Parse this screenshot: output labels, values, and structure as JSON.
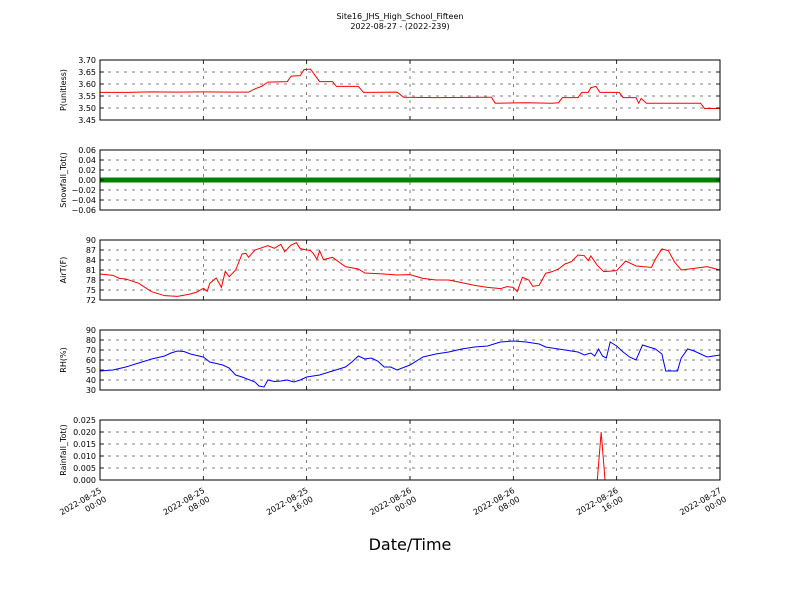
{
  "figure": {
    "title_line1": "Site16_JHS_High_School_Fifteen",
    "title_line2": "2022-08-27 - (2022-239)",
    "xlabel": "Date/Time"
  },
  "chart_data": {
    "type": "line",
    "x_range_hours": [
      0,
      48
    ],
    "x_ticks": [
      {
        "hour": 0,
        "label_top": "2022-08-25",
        "label_bottom": "00:00"
      },
      {
        "hour": 8,
        "label_top": "2022-08-25",
        "label_bottom": "08:00"
      },
      {
        "hour": 16,
        "label_top": "2022-08-25",
        "label_bottom": "16:00"
      },
      {
        "hour": 24,
        "label_top": "2022-08-26",
        "label_bottom": "00:00"
      },
      {
        "hour": 32,
        "label_top": "2022-08-26",
        "label_bottom": "08:00"
      },
      {
        "hour": 40,
        "label_top": "2022-08-26",
        "label_bottom": "16:00"
      },
      {
        "hour": 48,
        "label_top": "2022-08-27",
        "label_bottom": "00:00"
      }
    ],
    "grid": true,
    "panels": [
      {
        "ylabel": "P(unitless)",
        "ylim": [
          3.45,
          3.7
        ],
        "yticks": [
          "3.45",
          "3.50",
          "3.55",
          "3.60",
          "3.65",
          "3.70"
        ],
        "color": "#ff0000",
        "points": [
          [
            0,
            3.565
          ],
          [
            2,
            3.565
          ],
          [
            4,
            3.567
          ],
          [
            6,
            3.566
          ],
          [
            8,
            3.567
          ],
          [
            10,
            3.566
          ],
          [
            11.5,
            3.566
          ],
          [
            12,
            3.58
          ],
          [
            12.5,
            3.59
          ],
          [
            13,
            3.608
          ],
          [
            14.5,
            3.61
          ],
          [
            14.8,
            3.633
          ],
          [
            15.5,
            3.635
          ],
          [
            15.8,
            3.66
          ],
          [
            16.3,
            3.662
          ],
          [
            16.6,
            3.64
          ],
          [
            17,
            3.61
          ],
          [
            18,
            3.61
          ],
          [
            18.3,
            3.59
          ],
          [
            20,
            3.59
          ],
          [
            20.4,
            3.565
          ],
          [
            23,
            3.566
          ],
          [
            23.5,
            3.545
          ],
          [
            26,
            3.543
          ],
          [
            30,
            3.545
          ],
          [
            30.3,
            3.545
          ],
          [
            30.6,
            3.52
          ],
          [
            33,
            3.522
          ],
          [
            35,
            3.52
          ],
          [
            35.5,
            3.522
          ],
          [
            35.8,
            3.543
          ],
          [
            37,
            3.543
          ],
          [
            37.3,
            3.565
          ],
          [
            37.8,
            3.565
          ],
          [
            38,
            3.585
          ],
          [
            38.4,
            3.59
          ],
          [
            38.7,
            3.565
          ],
          [
            40.2,
            3.565
          ],
          [
            40.5,
            3.543
          ],
          [
            41.5,
            3.543
          ],
          [
            41.7,
            3.52
          ],
          [
            41.9,
            3.54
          ],
          [
            42.3,
            3.52
          ],
          [
            46,
            3.52
          ],
          [
            46.5,
            3.52
          ],
          [
            46.8,
            3.498
          ],
          [
            48,
            3.498
          ]
        ]
      },
      {
        "ylabel": "Snowfall_Tot()",
        "ylim": [
          -0.06,
          0.06
        ],
        "yticks": [
          "−0.06",
          "−0.04",
          "−0.02",
          "0.00",
          "0.02",
          "0.04",
          "0.06"
        ],
        "color": "#008000",
        "markers": true,
        "points": [
          [
            0,
            0
          ],
          [
            48,
            0
          ]
        ]
      },
      {
        "ylabel": "AirT(F)",
        "ylim": [
          72,
          90
        ],
        "yticks": [
          "72",
          "75",
          "78",
          "81",
          "84",
          "87",
          "90"
        ],
        "color": "#ff0000",
        "points": [
          [
            0,
            79.8
          ],
          [
            1,
            79.4
          ],
          [
            1.5,
            78.5
          ],
          [
            2,
            78.3
          ],
          [
            3,
            77
          ],
          [
            4,
            74.5
          ],
          [
            5,
            73.3
          ],
          [
            6,
            73.1
          ],
          [
            7,
            73.8
          ],
          [
            7.5,
            74.4
          ],
          [
            8,
            75.5
          ],
          [
            8.3,
            74.6
          ],
          [
            8.5,
            77
          ],
          [
            9,
            78.6
          ],
          [
            9.4,
            75.8
          ],
          [
            9.7,
            80.6
          ],
          [
            10,
            79
          ],
          [
            10.5,
            81
          ],
          [
            11,
            85.8
          ],
          [
            11.3,
            86
          ],
          [
            11.5,
            84.8
          ],
          [
            12,
            87
          ],
          [
            13,
            88.3
          ],
          [
            13.5,
            87.5
          ],
          [
            14,
            88.7
          ],
          [
            14.3,
            86.5
          ],
          [
            14.8,
            88.5
          ],
          [
            15.2,
            89.2
          ],
          [
            15.5,
            87.4
          ],
          [
            16.3,
            86.8
          ],
          [
            16.5,
            86
          ],
          [
            16.8,
            84.2
          ],
          [
            17,
            86.8
          ],
          [
            17.3,
            84.1
          ],
          [
            18,
            84.8
          ],
          [
            19,
            82
          ],
          [
            20,
            81.3
          ],
          [
            20.5,
            80.1
          ],
          [
            22,
            79.8
          ],
          [
            23,
            79.5
          ],
          [
            24,
            79.6
          ],
          [
            25,
            78.5
          ],
          [
            26,
            78
          ],
          [
            27,
            78
          ],
          [
            28,
            77.2
          ],
          [
            29,
            76.4
          ],
          [
            30,
            75.8
          ],
          [
            31,
            75.4
          ],
          [
            31.5,
            76
          ],
          [
            32,
            75.8
          ],
          [
            32.3,
            74.5
          ],
          [
            32.7,
            78.8
          ],
          [
            33.2,
            78
          ],
          [
            33.5,
            76.1
          ],
          [
            34,
            76.4
          ],
          [
            34.5,
            80
          ],
          [
            35,
            80.5
          ],
          [
            35.5,
            81.3
          ],
          [
            36,
            82.8
          ],
          [
            36.5,
            83.5
          ],
          [
            37,
            85.5
          ],
          [
            37.5,
            85.3
          ],
          [
            37.8,
            83.8
          ],
          [
            38,
            85.2
          ],
          [
            38.5,
            82.4
          ],
          [
            39,
            80.5
          ],
          [
            40,
            80.8
          ],
          [
            40.7,
            83.7
          ],
          [
            41.5,
            82.2
          ],
          [
            42,
            82
          ],
          [
            42.7,
            81.8
          ],
          [
            43,
            84.3
          ],
          [
            43.5,
            87.3
          ],
          [
            44,
            86.8
          ],
          [
            44.5,
            83.3
          ],
          [
            45,
            81
          ],
          [
            46,
            81.5
          ],
          [
            47,
            82
          ],
          [
            48,
            81
          ]
        ]
      },
      {
        "ylabel": "RH(%)",
        "ylim": [
          30,
          90
        ],
        "yticks": [
          "30",
          "40",
          "50",
          "60",
          "70",
          "80",
          "90"
        ],
        "color": "#0000ff",
        "points": [
          [
            0,
            49
          ],
          [
            1,
            50
          ],
          [
            2,
            53
          ],
          [
            3,
            57
          ],
          [
            4,
            61
          ],
          [
            5,
            64
          ],
          [
            5.5,
            67
          ],
          [
            6,
            69
          ],
          [
            6.5,
            68.5
          ],
          [
            7,
            66
          ],
          [
            8,
            63
          ],
          [
            8.5,
            58
          ],
          [
            9.5,
            55
          ],
          [
            10,
            52
          ],
          [
            10.5,
            45
          ],
          [
            11,
            43
          ],
          [
            12,
            38
          ],
          [
            12.3,
            34
          ],
          [
            12.7,
            33
          ],
          [
            13,
            40
          ],
          [
            13.5,
            38.5
          ],
          [
            14,
            39
          ],
          [
            14.5,
            40
          ],
          [
            15,
            38
          ],
          [
            15.5,
            40
          ],
          [
            16,
            43
          ],
          [
            17,
            45
          ],
          [
            18,
            49
          ],
          [
            19,
            53
          ],
          [
            19.5,
            58
          ],
          [
            20,
            64
          ],
          [
            20.5,
            61
          ],
          [
            21,
            62
          ],
          [
            21.5,
            59
          ],
          [
            22,
            53
          ],
          [
            22.5,
            53
          ],
          [
            23,
            50
          ],
          [
            24,
            55
          ],
          [
            25,
            63
          ],
          [
            26,
            66
          ],
          [
            27,
            68
          ],
          [
            28,
            71
          ],
          [
            29,
            73
          ],
          [
            30,
            74
          ],
          [
            31,
            78
          ],
          [
            32,
            79
          ],
          [
            33,
            78
          ],
          [
            34,
            76
          ],
          [
            34.5,
            73
          ],
          [
            35.5,
            71
          ],
          [
            36,
            70
          ],
          [
            37,
            68
          ],
          [
            37.5,
            65
          ],
          [
            38,
            67
          ],
          [
            38.3,
            64
          ],
          [
            38.6,
            71
          ],
          [
            38.9,
            64
          ],
          [
            39.2,
            62
          ],
          [
            39.5,
            78
          ],
          [
            40,
            74
          ],
          [
            40.5,
            68
          ],
          [
            41,
            63
          ],
          [
            41.5,
            60
          ],
          [
            42,
            75
          ],
          [
            42.5,
            73
          ],
          [
            43,
            71
          ],
          [
            43.5,
            66
          ],
          [
            43.8,
            49
          ],
          [
            44.7,
            49
          ],
          [
            45,
            62
          ],
          [
            45.5,
            71
          ],
          [
            46,
            69
          ],
          [
            46.5,
            66
          ],
          [
            47,
            63
          ],
          [
            48,
            65
          ]
        ]
      },
      {
        "ylabel": "Rainfall_Tot()",
        "ylim": [
          0.0,
          0.025
        ],
        "yticks": [
          "0.000",
          "0.005",
          "0.010",
          "0.015",
          "0.020",
          "0.025"
        ],
        "color": "#ff0000",
        "points": [
          [
            0,
            0
          ],
          [
            38.5,
            0
          ],
          [
            38.8,
            0.02
          ],
          [
            39.1,
            0
          ],
          [
            48,
            0
          ]
        ]
      }
    ]
  }
}
